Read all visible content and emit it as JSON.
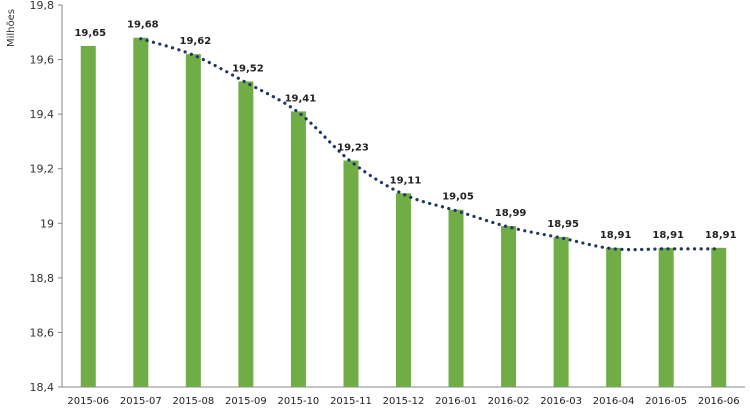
{
  "chart_data": {
    "type": "bar",
    "title": "",
    "ylabel": "Milhões",
    "xlabel": "",
    "categories": [
      "2015-06",
      "2015-07",
      "2015-08",
      "2015-09",
      "2015-10",
      "2015-11",
      "2015-12",
      "2016-01",
      "2016-02",
      "2016-03",
      "2016-04",
      "2016-05",
      "2016-06"
    ],
    "values": [
      19.65,
      19.68,
      19.62,
      19.52,
      19.41,
      19.23,
      19.11,
      19.05,
      18.99,
      18.95,
      18.91,
      18.91,
      18.91
    ],
    "data_labels": [
      "19,65",
      "19,68",
      "19,62",
      "19,52",
      "19,41",
      "19,23",
      "19,11",
      "19,05",
      "18,99",
      "18,95",
      "18,91",
      "18,91",
      "18,91"
    ],
    "ylim": [
      18.4,
      19.8
    ],
    "yticks": [
      18.4,
      18.6,
      18.8,
      19,
      19.2,
      19.4,
      19.6,
      19.8
    ],
    "ytick_labels": [
      "18,4",
      "18,6",
      "18,8",
      "19",
      "19,2",
      "19,4",
      "19,6",
      "19,8"
    ],
    "bar_color": "#70AD47",
    "trendline": {
      "style": "dotted",
      "color": "#1F3864",
      "starts_at_index": 1
    },
    "grid": false,
    "legend": "none"
  }
}
